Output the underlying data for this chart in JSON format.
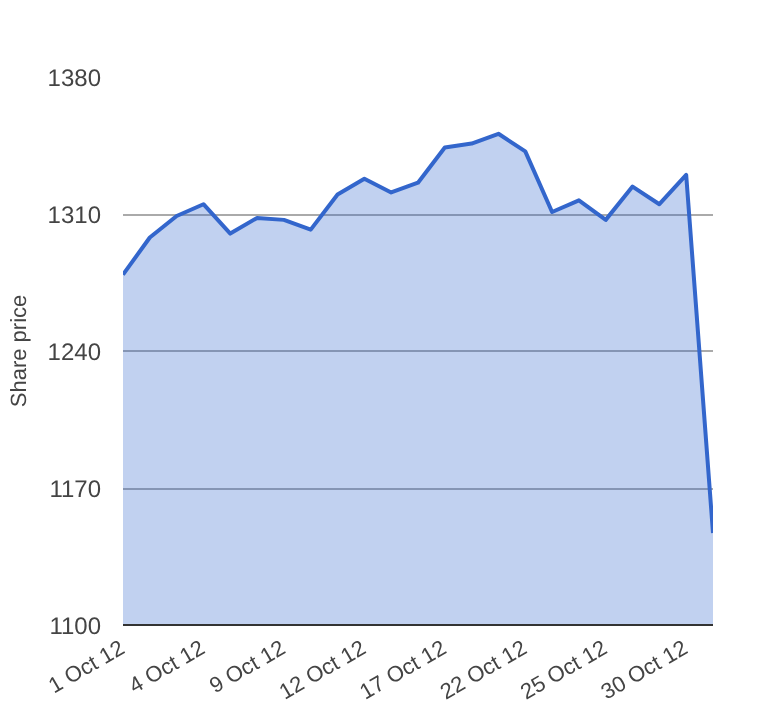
{
  "chart_data": {
    "type": "area",
    "ylabel": "Share price",
    "categories": [
      "1 Oct 12",
      null,
      null,
      "4 Oct 12",
      null,
      null,
      "9 Oct 12",
      null,
      null,
      "12 Oct 12",
      null,
      null,
      "17 Oct 12",
      null,
      null,
      "22 Oct 12",
      null,
      null,
      "25 Oct 12",
      null,
      null,
      "30 Oct 12",
      null
    ],
    "series": [
      {
        "color": "#3366cc",
        "values": [
          1279,
          1298,
          1309,
          1315,
          1300,
          1308,
          1307,
          1302,
          1320,
          1328,
          1321,
          1326,
          1344,
          1346,
          1351,
          1342,
          1311,
          1317,
          1307,
          1324,
          1315,
          1330,
          1147
        ]
      }
    ],
    "ylim": [
      1100,
      1380
    ],
    "yticks": [
      1100,
      1170,
      1240,
      1310,
      1380
    ],
    "grid": "y"
  }
}
